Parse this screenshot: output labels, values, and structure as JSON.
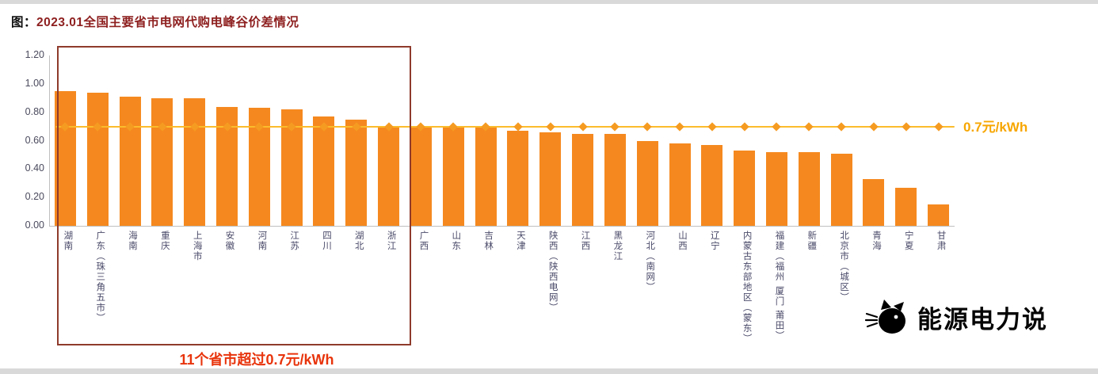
{
  "title": {
    "prefix": "图：",
    "text": "2023.01全国主要省市电网代购电峰谷价差情况"
  },
  "annotation": {
    "text": "11个省市超过0.7元/kWh"
  },
  "logo": {
    "text": "能源电力说"
  },
  "colors": {
    "bar_orange": "#F5891F",
    "line_yellow": "#FBBC2C",
    "marker_orange": "#F59B22",
    "title_red": "#8E1F1F",
    "annotation_red": "#E8340C",
    "highlight_box_red": "#8F3B2C",
    "axis_text": "#4A4A6A",
    "reference_label_orange": "#F7A600",
    "logo_black": "#000000"
  },
  "chart_data": {
    "type": "bar",
    "title": "2023.01全国主要省市电网代购电峰谷价差情况",
    "xlabel": "",
    "ylabel": "",
    "ylim": [
      0,
      1.2
    ],
    "yticks": [
      0.0,
      0.2,
      0.4,
      0.6,
      0.8,
      1.0,
      1.2
    ],
    "grid": false,
    "categories": [
      "湖南",
      "广东（珠三角五市）",
      "海南",
      "重庆",
      "上海市",
      "安徽",
      "河南",
      "江苏",
      "四川",
      "湖北",
      "浙江",
      "广西",
      "山东",
      "吉林",
      "天津",
      "陕西（陕西电网）",
      "江西",
      "黑龙江",
      "河北（南网）",
      "山西",
      "辽宁",
      "内蒙古东部地区（蒙东）",
      "福建（福州 厦门 莆田）",
      "新疆",
      "北京市（城区）",
      "青海",
      "宁夏",
      "甘肃"
    ],
    "values": [
      0.95,
      0.94,
      0.91,
      0.9,
      0.9,
      0.84,
      0.83,
      0.82,
      0.77,
      0.75,
      0.7,
      0.7,
      0.7,
      0.69,
      0.67,
      0.66,
      0.65,
      0.65,
      0.6,
      0.58,
      0.57,
      0.53,
      0.52,
      0.52,
      0.51,
      0.33,
      0.27,
      0.15
    ],
    "reference_line": {
      "value": 0.7,
      "label": "0.7元/kWh"
    },
    "highlight": {
      "from_category": "湖南",
      "to_category": "浙江",
      "count": 11
    }
  }
}
